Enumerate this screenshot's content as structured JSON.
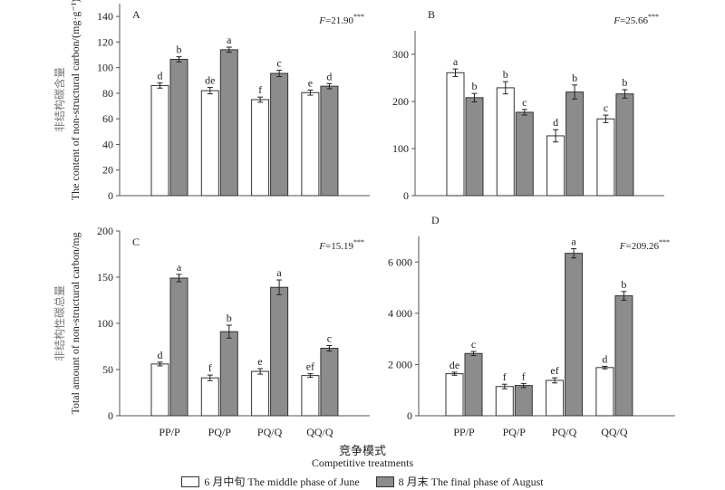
{
  "chart_data": [
    {
      "type": "bar",
      "panel": "A",
      "ylabel_cn": "非结构碳含量",
      "ylabel": "The content of non-structural carbon/(mg·g⁻¹)",
      "stat_prefix": "F",
      "stat_value": "=21.90",
      "stat_sig": "***",
      "ylim": [
        0,
        150
      ],
      "yticks": [
        0,
        20,
        40,
        60,
        80,
        100,
        120,
        140
      ],
      "ytick_labels": [
        "0",
        "20",
        "40",
        "60",
        "80",
        "100",
        "120",
        "140"
      ],
      "categories": [
        "PP/P",
        "PQ/P",
        "PQ/Q",
        "QQ/Q"
      ],
      "show_categories": false,
      "series": [
        {
          "name": "June",
          "values": [
            86,
            82,
            75,
            80.5
          ],
          "errors": [
            2,
            2.5,
            2,
            2
          ],
          "letters": [
            "d",
            "de",
            "f",
            "e"
          ]
        },
        {
          "name": "August",
          "values": [
            106.5,
            114,
            95.5,
            85.5
          ],
          "errors": [
            2,
            2,
            2.5,
            2
          ],
          "letters": [
            "b",
            "a",
            "c",
            "d"
          ]
        }
      ]
    },
    {
      "type": "bar",
      "panel": "B",
      "ylabel_cn": "",
      "ylabel": "",
      "stat_prefix": "F",
      "stat_value": "=25.66",
      "stat_sig": "***",
      "ylim": [
        0,
        350
      ],
      "yticks": [
        0,
        100,
        200,
        300
      ],
      "ytick_labels": [
        "0",
        "100",
        "200",
        "300"
      ],
      "categories": [
        "PP/P",
        "PQ/P",
        "PQ/Q",
        "QQ/Q"
      ],
      "show_categories": false,
      "series": [
        {
          "name": "June",
          "values": [
            261,
            229,
            127,
            163
          ],
          "errors": [
            8,
            13,
            13,
            8
          ],
          "letters": [
            "a",
            "b",
            "d",
            "c"
          ]
        },
        {
          "name": "August",
          "values": [
            208,
            177,
            220,
            216
          ],
          "errors": [
            9,
            6,
            15,
            9
          ],
          "letters": [
            "b",
            "c",
            "b",
            "b"
          ]
        }
      ]
    },
    {
      "type": "bar",
      "panel": "C",
      "ylabel_cn": "非结构性碳总量",
      "ylabel": "Total amount of non-structural carbon/mg",
      "stat_prefix": "F",
      "stat_value": "=15.19",
      "stat_sig": "***",
      "ylim": [
        0,
        200
      ],
      "yticks": [
        0,
        50,
        100,
        150,
        200
      ],
      "ytick_labels": [
        "0",
        "50",
        "100",
        "150",
        "200"
      ],
      "categories": [
        "PP/P",
        "PQ/P",
        "PQ/Q",
        "QQ/Q"
      ],
      "show_categories": true,
      "series": [
        {
          "name": "June",
          "values": [
            56,
            41,
            48,
            43.5
          ],
          "errors": [
            2,
            3,
            3,
            2
          ],
          "letters": [
            "d",
            "f",
            "e",
            "ef"
          ]
        },
        {
          "name": "August",
          "values": [
            149,
            91,
            139,
            73
          ],
          "errors": [
            4,
            7,
            8,
            3
          ],
          "letters": [
            "a",
            "b",
            "a",
            "c"
          ]
        }
      ]
    },
    {
      "type": "bar",
      "panel": "D",
      "ylabel_cn": "",
      "ylabel": "",
      "stat_prefix": "F",
      "stat_value": "=209.26",
      "stat_sig": "***",
      "ylim": [
        0,
        7000
      ],
      "yticks": [
        0,
        2000,
        4000,
        6000
      ],
      "ytick_labels": [
        "0",
        "2 000",
        "4 000",
        "6 000"
      ],
      "categories": [
        "PP/P",
        "PQ/P",
        "PQ/Q",
        "QQ/Q"
      ],
      "show_categories": true,
      "series": [
        {
          "name": "June",
          "values": [
            1640,
            1140,
            1380,
            1880
          ],
          "errors": [
            60,
            90,
            100,
            50
          ],
          "letters": [
            "de",
            "f",
            "ef",
            "d"
          ]
        },
        {
          "name": "August",
          "values": [
            2430,
            1180,
            6340,
            4680
          ],
          "errors": [
            80,
            80,
            180,
            170
          ],
          "letters": [
            "c",
            "f",
            "a",
            "b"
          ]
        }
      ]
    }
  ],
  "xlabel_cn": "竞争模式",
  "xlabel": "Competitive treatments",
  "legend": [
    {
      "label": "6 月中旬 The middle phase of June",
      "color": "#ffffff"
    },
    {
      "label": "8 月末 The final phase of August",
      "color": "#8c8c8c"
    }
  ]
}
